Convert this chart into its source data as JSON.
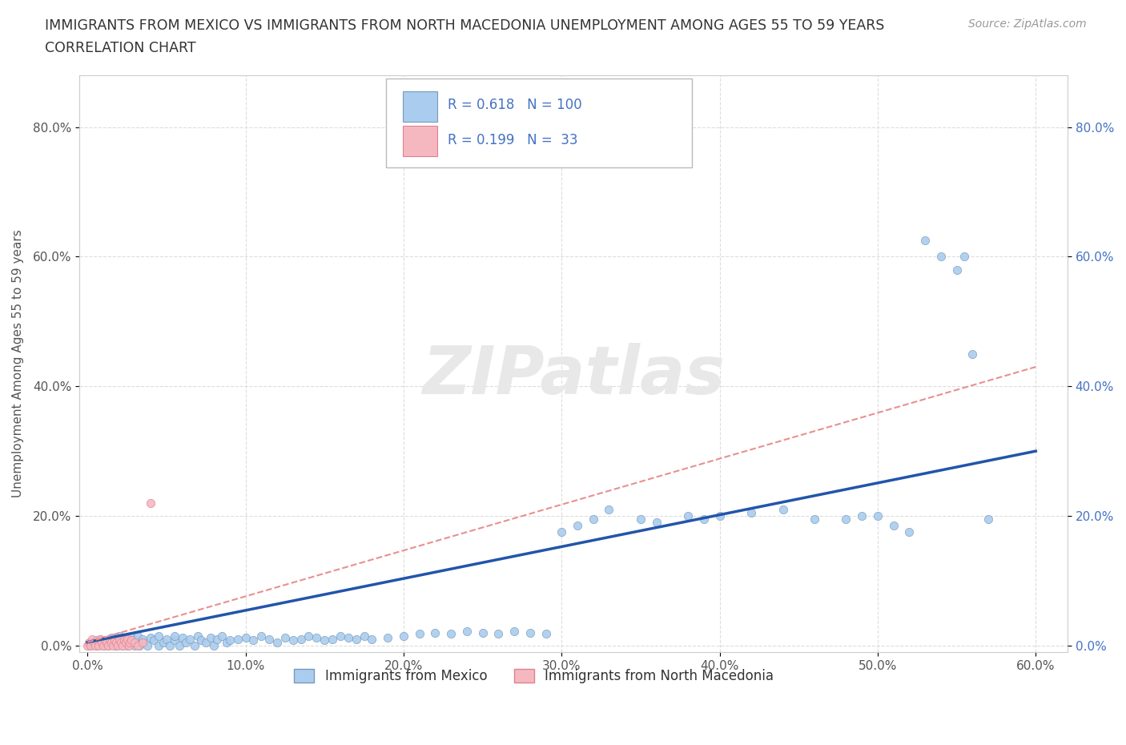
{
  "title_line1": "IMMIGRANTS FROM MEXICO VS IMMIGRANTS FROM NORTH MACEDONIA UNEMPLOYMENT AMONG AGES 55 TO 59 YEARS",
  "title_line2": "CORRELATION CHART",
  "source": "Source: ZipAtlas.com",
  "ylabel": "Unemployment Among Ages 55 to 59 years",
  "xlim": [
    -0.005,
    0.62
  ],
  "ylim": [
    -0.01,
    0.88
  ],
  "xtick_vals": [
    0.0,
    0.1,
    0.2,
    0.3,
    0.4,
    0.5,
    0.6
  ],
  "xtick_labels": [
    "0.0%",
    "10.0%",
    "20.0%",
    "30.0%",
    "40.0%",
    "50.0%",
    "60.0%"
  ],
  "ytick_vals": [
    0.0,
    0.2,
    0.4,
    0.6,
    0.8
  ],
  "ytick_labels": [
    "0.0%",
    "20.0%",
    "40.0%",
    "60.0%",
    "80.0%"
  ],
  "mexico_color": "#aaccee",
  "mexico_edge_color": "#7799bb",
  "north_mac_color": "#f5b8c0",
  "north_mac_edge_color": "#e08090",
  "mexico_R": 0.618,
  "mexico_N": 100,
  "north_mac_R": 0.199,
  "north_mac_N": 33,
  "legend_label_mexico": "Immigrants from Mexico",
  "legend_label_north_mac": "Immigrants from North Macedonia",
  "mexico_x": [
    0.002,
    0.004,
    0.006,
    0.008,
    0.01,
    0.01,
    0.012,
    0.013,
    0.015,
    0.015,
    0.018,
    0.02,
    0.02,
    0.022,
    0.025,
    0.025,
    0.027,
    0.028,
    0.03,
    0.03,
    0.032,
    0.033,
    0.035,
    0.035,
    0.038,
    0.04,
    0.042,
    0.045,
    0.045,
    0.048,
    0.05,
    0.052,
    0.055,
    0.055,
    0.058,
    0.06,
    0.062,
    0.065,
    0.068,
    0.07,
    0.072,
    0.075,
    0.078,
    0.08,
    0.082,
    0.085,
    0.088,
    0.09,
    0.095,
    0.1,
    0.105,
    0.11,
    0.115,
    0.12,
    0.125,
    0.13,
    0.135,
    0.14,
    0.145,
    0.15,
    0.155,
    0.16,
    0.165,
    0.17,
    0.175,
    0.18,
    0.19,
    0.2,
    0.21,
    0.22,
    0.23,
    0.24,
    0.25,
    0.26,
    0.27,
    0.28,
    0.29,
    0.3,
    0.31,
    0.32,
    0.33,
    0.35,
    0.36,
    0.38,
    0.39,
    0.4,
    0.42,
    0.44,
    0.46,
    0.48,
    0.49,
    0.5,
    0.51,
    0.52,
    0.53,
    0.54,
    0.55,
    0.555,
    0.56,
    0.57
  ],
  "mexico_y": [
    0.0,
    0.005,
    0.0,
    0.01,
    0.005,
    0.0,
    0.008,
    0.0,
    0.012,
    0.005,
    0.0,
    0.008,
    0.015,
    0.0,
    0.01,
    0.0,
    0.005,
    0.012,
    0.0,
    0.008,
    0.015,
    0.0,
    0.01,
    0.005,
    0.0,
    0.012,
    0.008,
    0.0,
    0.015,
    0.005,
    0.01,
    0.0,
    0.008,
    0.015,
    0.0,
    0.012,
    0.005,
    0.01,
    0.0,
    0.015,
    0.008,
    0.005,
    0.012,
    0.0,
    0.01,
    0.015,
    0.005,
    0.008,
    0.01,
    0.012,
    0.008,
    0.015,
    0.01,
    0.005,
    0.012,
    0.008,
    0.01,
    0.015,
    0.012,
    0.008,
    0.01,
    0.015,
    0.012,
    0.01,
    0.015,
    0.01,
    0.012,
    0.015,
    0.018,
    0.02,
    0.018,
    0.022,
    0.02,
    0.018,
    0.022,
    0.02,
    0.018,
    0.175,
    0.185,
    0.195,
    0.21,
    0.195,
    0.19,
    0.2,
    0.195,
    0.2,
    0.205,
    0.21,
    0.195,
    0.195,
    0.2,
    0.2,
    0.185,
    0.175,
    0.625,
    0.6,
    0.58,
    0.6,
    0.45,
    0.195
  ],
  "north_mac_x": [
    0.0,
    0.001,
    0.002,
    0.003,
    0.004,
    0.005,
    0.006,
    0.007,
    0.008,
    0.009,
    0.01,
    0.011,
    0.012,
    0.013,
    0.014,
    0.015,
    0.016,
    0.017,
    0.018,
    0.019,
    0.02,
    0.021,
    0.022,
    0.023,
    0.024,
    0.025,
    0.026,
    0.027,
    0.028,
    0.03,
    0.032,
    0.035,
    0.04
  ],
  "north_mac_y": [
    0.0,
    0.005,
    0.0,
    0.01,
    0.005,
    0.0,
    0.008,
    0.0,
    0.01,
    0.005,
    0.0,
    0.008,
    0.005,
    0.0,
    0.01,
    0.005,
    0.0,
    0.008,
    0.005,
    0.0,
    0.01,
    0.005,
    0.0,
    0.008,
    0.005,
    0.01,
    0.0,
    0.005,
    0.008,
    0.005,
    0.0,
    0.005,
    0.22
  ],
  "mexico_trend_x": [
    0.0,
    0.6
  ],
  "mexico_trend_y": [
    0.005,
    0.3
  ],
  "north_mac_trend_x": [
    0.0,
    0.6
  ],
  "north_mac_trend_y": [
    0.005,
    0.43
  ],
  "background_color": "#ffffff",
  "grid_color": "#dddddd",
  "title_color": "#333333",
  "ylabel_color": "#555555",
  "tick_color": "#555555",
  "right_tick_color": "#4472c4",
  "mexico_trend_color": "#2255aa",
  "north_mac_trend_color": "#e89090",
  "watermark_color": "#e8e8e8"
}
